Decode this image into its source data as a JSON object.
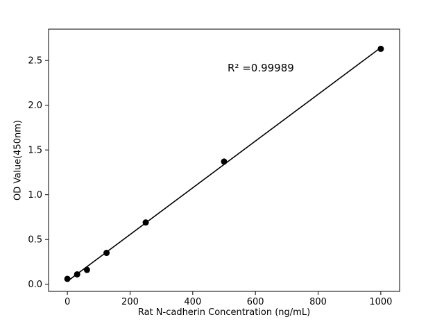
{
  "figure": {
    "background_color": "#ffffff",
    "foreground_color": "#000000"
  },
  "chart_data": {
    "type": "scatter",
    "title": "",
    "xlabel": "Rat N-cadherin Concentration (ng/mL)",
    "ylabel": "OD Value(450nm)",
    "annotation": "R² =0.99989",
    "x": [
      0,
      31.25,
      62.5,
      125,
      250,
      500,
      1000
    ],
    "y": [
      0.06,
      0.11,
      0.16,
      0.35,
      0.69,
      1.37,
      2.63
    ],
    "fit": "linear",
    "xlim": [
      -60,
      1060
    ],
    "ylim": [
      -0.08,
      2.85
    ],
    "xticks": [
      0,
      200,
      400,
      600,
      800,
      1000
    ],
    "yticks": [
      0.0,
      0.5,
      1.0,
      1.5,
      2.0,
      2.5
    ],
    "grid": false,
    "legend": "none",
    "marker_color": "#000000",
    "line_color": "#000000"
  }
}
